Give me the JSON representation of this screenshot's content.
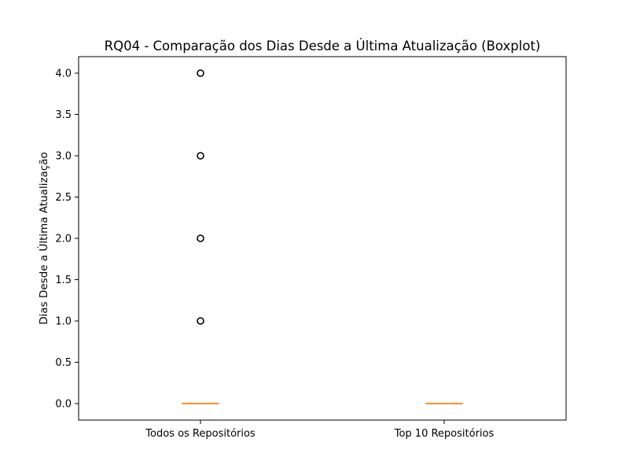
{
  "chart_data": {
    "type": "boxplot",
    "title": "RQ04 - Comparação dos Dias Desde a Última Atualização (Boxplot)",
    "xlabel": "",
    "ylabel": "Dias Desde a Última Atualização",
    "ylim": [
      -0.2,
      4.2
    ],
    "yticks": [
      0.0,
      0.5,
      1.0,
      1.5,
      2.0,
      2.5,
      3.0,
      3.5,
      4.0
    ],
    "ytick_labels": [
      "0.0",
      "0.5",
      "1.0",
      "1.5",
      "2.0",
      "2.5",
      "3.0",
      "3.5",
      "4.0"
    ],
    "categories": [
      "Todos os Repositórios",
      "Top 10 Repositórios"
    ],
    "grid": false,
    "boxes": [
      {
        "category": "Todos os Repositórios",
        "q1": 0,
        "median": 0,
        "q3": 0,
        "whisker_low": 0,
        "whisker_high": 0,
        "outliers": [
          1,
          2,
          3,
          4
        ]
      },
      {
        "category": "Top 10 Repositórios",
        "q1": 0,
        "median": 0,
        "q3": 0,
        "whisker_low": 0,
        "whisker_high": 0,
        "outliers": []
      }
    ],
    "colors": {
      "box": "#000000",
      "median": "#ff7f0e",
      "outlier": "#000000",
      "axes": "#000000"
    }
  }
}
